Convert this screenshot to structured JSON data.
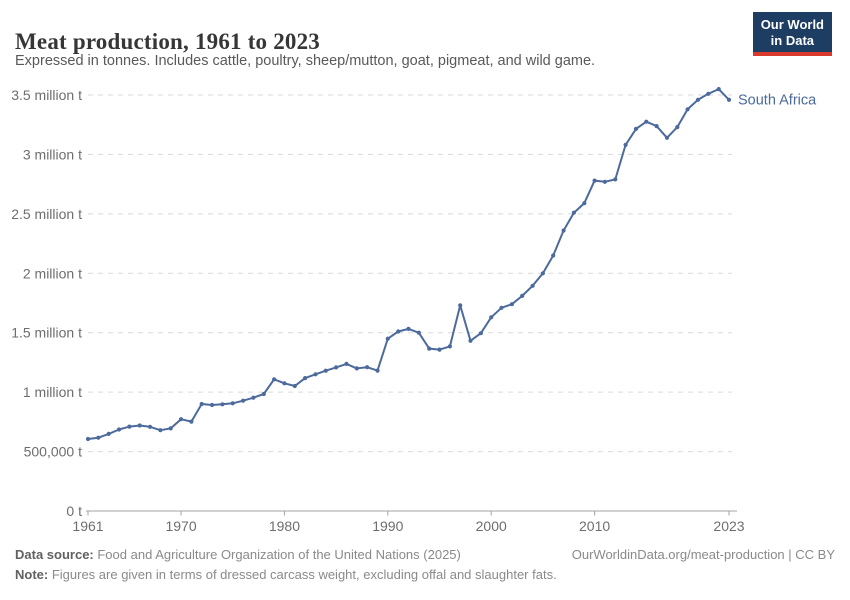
{
  "header": {
    "title": "Meat production, 1961 to 2023",
    "subtitle": "Expressed in tonnes. Includes cattle, poultry, sheep/mutton, goat, pigmeat, and wild game.",
    "logo": {
      "line1": "Our World",
      "line2": "in Data"
    }
  },
  "colors": {
    "line": "#4c6a9c",
    "grid": "#d9d9d9",
    "axis": "#a3a3a3",
    "tick_text": "#6e6e6e",
    "entity_label": "#4c6a9c"
  },
  "chart_data": {
    "type": "line",
    "title": "Meat production, 1961 to 2023",
    "xlabel": "",
    "ylabel": "",
    "grid": "horizontal-dashed",
    "legend_position": "end-of-line",
    "ylim": [
      0,
      3500000
    ],
    "yticks": [
      {
        "v": 0,
        "label": "0 t"
      },
      {
        "v": 500000,
        "label": "500,000 t"
      },
      {
        "v": 1000000,
        "label": "1 million t"
      },
      {
        "v": 1500000,
        "label": "1.5 million t"
      },
      {
        "v": 2000000,
        "label": "2 million t"
      },
      {
        "v": 2500000,
        "label": "2.5 million t"
      },
      {
        "v": 3000000,
        "label": "3 million t"
      },
      {
        "v": 3500000,
        "label": "3.5 million t"
      }
    ],
    "xticks": [
      1961,
      1970,
      1980,
      1990,
      2000,
      2010,
      2023
    ],
    "xlim": [
      1961,
      2023
    ],
    "series": [
      {
        "name": "South Africa",
        "color": "#4c6a9c",
        "x": [
          1961,
          1962,
          1963,
          1964,
          1965,
          1966,
          1967,
          1968,
          1969,
          1970,
          1971,
          1972,
          1973,
          1974,
          1975,
          1976,
          1977,
          1978,
          1979,
          1980,
          1981,
          1982,
          1983,
          1984,
          1985,
          1986,
          1987,
          1988,
          1989,
          1990,
          1991,
          1992,
          1993,
          1994,
          1995,
          1996,
          1997,
          1998,
          1999,
          2000,
          2001,
          2002,
          2003,
          2004,
          2005,
          2006,
          2007,
          2008,
          2009,
          2010,
          2011,
          2012,
          2013,
          2014,
          2015,
          2016,
          2017,
          2018,
          2019,
          2020,
          2021,
          2022,
          2023
        ],
        "values": [
          606000,
          617000,
          649000,
          686000,
          710000,
          719000,
          708000,
          680000,
          695000,
          772000,
          752000,
          900000,
          892000,
          898000,
          906000,
          928000,
          953000,
          984000,
          1108000,
          1074000,
          1052000,
          1118000,
          1150000,
          1180000,
          1208000,
          1238000,
          1200000,
          1210000,
          1181000,
          1450000,
          1510000,
          1532000,
          1500000,
          1366000,
          1358000,
          1385000,
          1730000,
          1432000,
          1496000,
          1630000,
          1710000,
          1740000,
          1810000,
          1895000,
          2000000,
          2150000,
          2360000,
          2510000,
          2590000,
          2780000,
          2770000,
          2790000,
          3080000,
          3215000,
          3275000,
          3238000,
          3140000,
          3230000,
          3380000,
          3460000,
          3510000,
          3550000,
          3460000
        ]
      }
    ]
  },
  "footer": {
    "source_label": "Data source:",
    "source_text": " Food and Agriculture Organization of the United Nations (2025)",
    "link": "OurWorldinData.org/meat-production",
    "license": " | CC BY",
    "note_label": "Note:",
    "note_text": " Figures are given in terms of dressed carcass weight, excluding offal and slaughter fats."
  }
}
